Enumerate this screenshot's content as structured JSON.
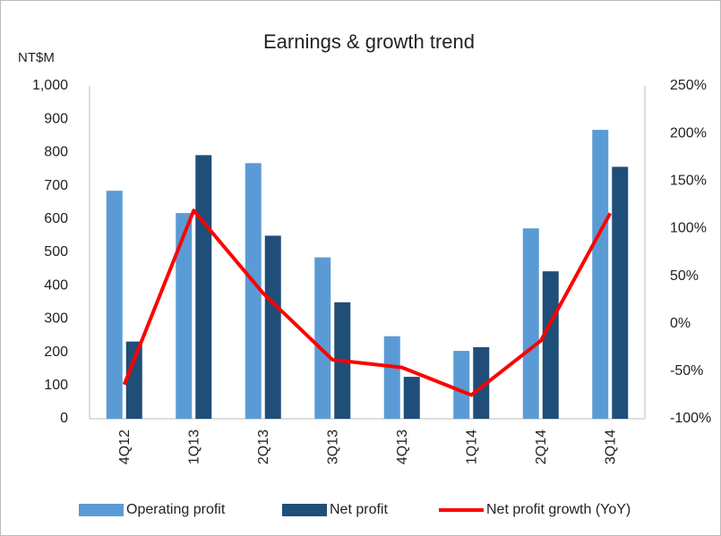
{
  "chart_data": {
    "type": "bar",
    "title": "Earnings & growth trend",
    "y_label": "NT$M",
    "categories": [
      "4Q12",
      "1Q13",
      "2Q13",
      "3Q13",
      "4Q13",
      "1Q14",
      "2Q14",
      "3Q14"
    ],
    "series": [
      {
        "name": "Operating profit",
        "type": "bar",
        "color": "#5b9bd5",
        "values": [
          685,
          618,
          768,
          485,
          248,
          204,
          572,
          868
        ]
      },
      {
        "name": "Net profit",
        "type": "bar",
        "color": "#1f4e79",
        "values": [
          232,
          792,
          550,
          350,
          126,
          215,
          443,
          757
        ]
      },
      {
        "name": "Net profit growth (YoY)",
        "type": "line",
        "axis": "y2",
        "color": "#ff0000",
        "values": [
          -64,
          119,
          32,
          -38,
          -46,
          -75,
          -18,
          116
        ]
      }
    ],
    "ylim": [
      0,
      1000
    ],
    "yticks": [
      0,
      100,
      200,
      300,
      400,
      500,
      600,
      700,
      800,
      900,
      {
        "value": 1000,
        "label": "1,000"
      }
    ],
    "y2lim": [
      -100,
      250
    ],
    "y2ticks": [
      {
        "value": -100,
        "label": "-100%"
      },
      {
        "value": -50,
        "label": "-50%"
      },
      {
        "value": 0,
        "label": "0%"
      },
      {
        "value": 50,
        "label": "50%"
      },
      {
        "value": 100,
        "label": "100%"
      },
      {
        "value": 150,
        "label": "150%"
      },
      {
        "value": 200,
        "label": "200%"
      },
      {
        "value": 250,
        "label": "250%"
      }
    ],
    "grid": false,
    "legend": "bottom"
  }
}
